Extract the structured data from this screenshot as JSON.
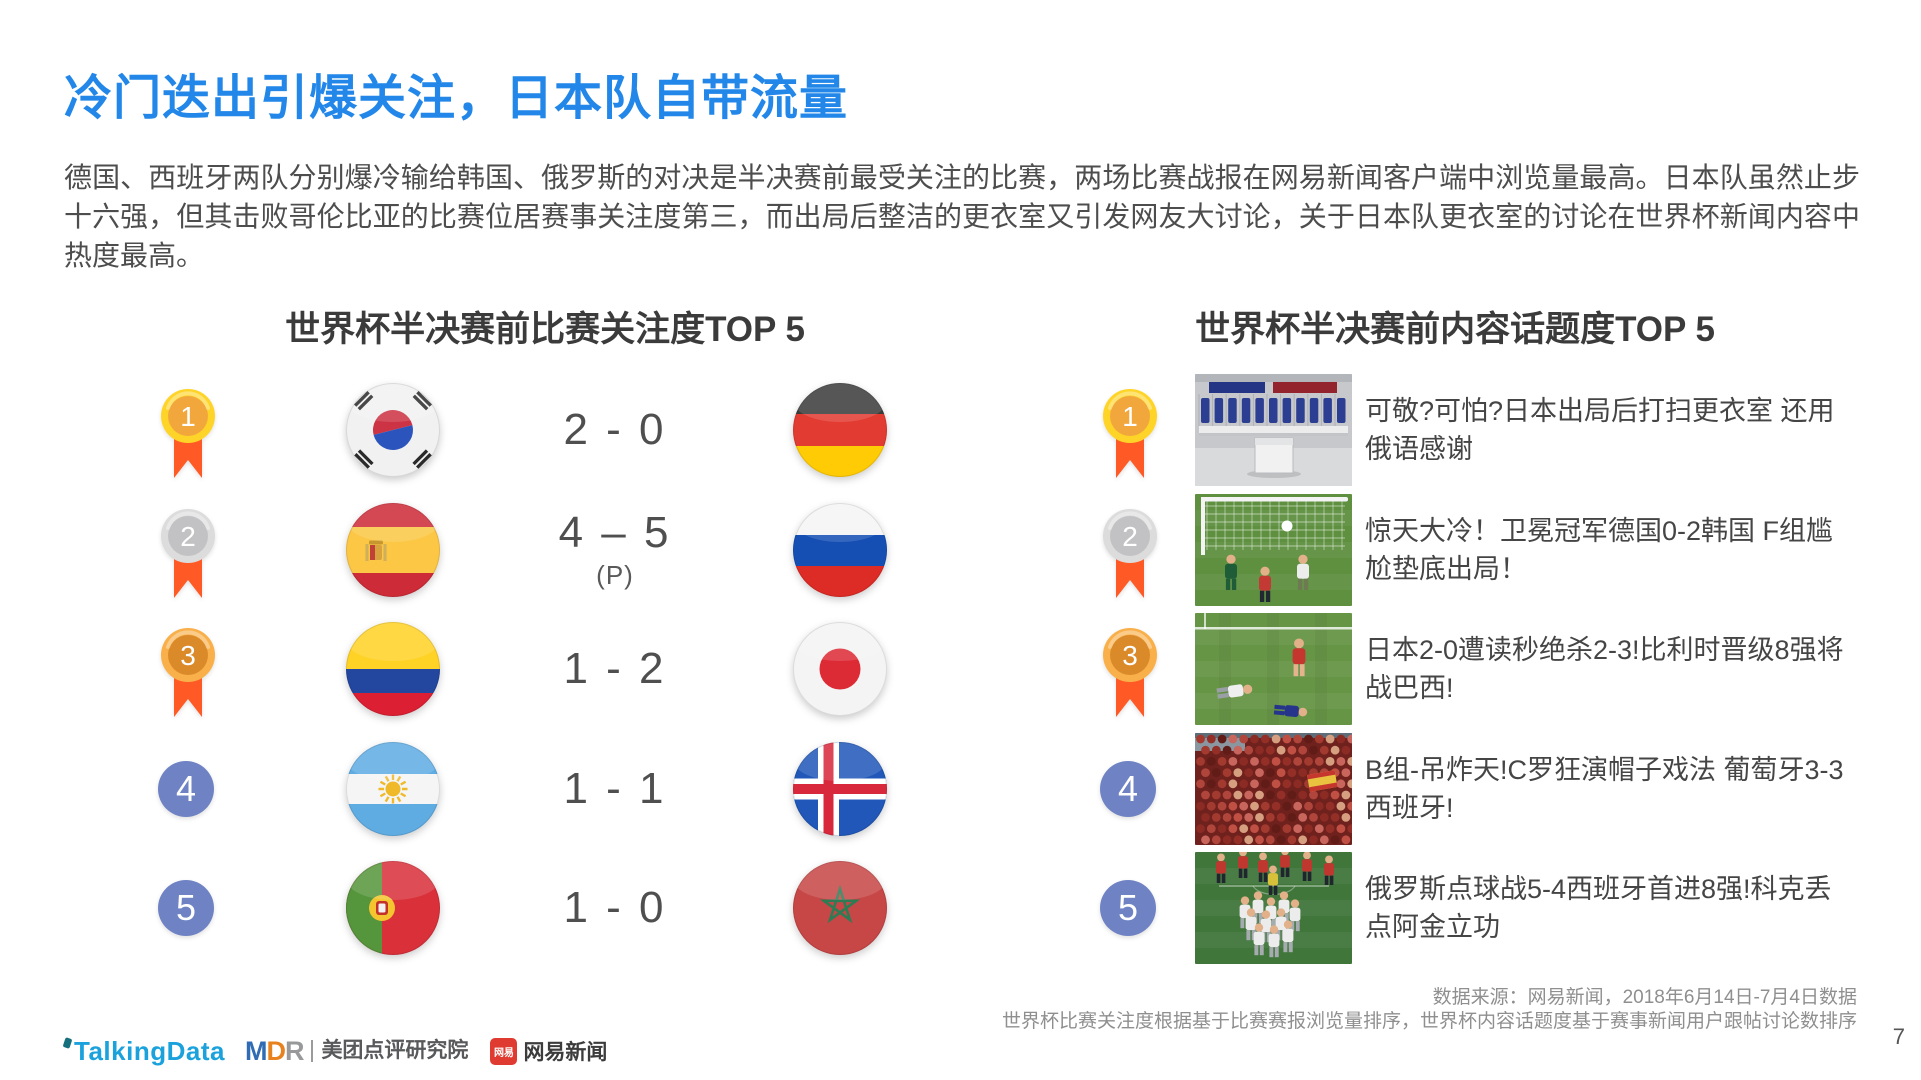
{
  "slide": {
    "title": "冷门迭出引爆关注，日本队自带流量",
    "intro": "德国、西班牙两队分别爆冷输给韩国、俄罗斯的对决是半决赛前最受关注的比赛，两场比赛战报在网易新闻客户端中浏览量最高。日本队虽然止步十六强，但其击败哥伦比亚的比赛位居赛事关注度第三，而出局后整洁的更衣室又引发网友大讨论，关于日本队更衣室的讨论在世界杯新闻内容中热度最高。",
    "page_number": "7"
  },
  "match_ranking": {
    "header": "世界杯半决赛前比赛关注度TOP 5",
    "rows": [
      {
        "rank": "1",
        "medal": "gold",
        "home_team": "south-korea",
        "score": "2 - 0",
        "score_note": "",
        "away_team": "germany"
      },
      {
        "rank": "2",
        "medal": "silver",
        "home_team": "spain",
        "score": "4 – 5",
        "score_note": "(P)",
        "away_team": "russia"
      },
      {
        "rank": "3",
        "medal": "bronze",
        "home_team": "colombia",
        "score": "1 - 2",
        "score_note": "",
        "away_team": "japan"
      },
      {
        "rank": "4",
        "medal": "plain",
        "home_team": "argentina",
        "score": "1 - 1",
        "score_note": "",
        "away_team": "iceland"
      },
      {
        "rank": "5",
        "medal": "plain",
        "home_team": "portugal",
        "score": "1 - 0",
        "score_note": "",
        "away_team": "morocco"
      }
    ]
  },
  "topic_ranking": {
    "header": "世界杯半决赛前内容话题度TOP 5",
    "rows": [
      {
        "rank": "1",
        "medal": "gold",
        "scene": "locker_room",
        "title": "可敬?可怕?日本出局后打扫更衣室 还用俄语感谢"
      },
      {
        "rank": "2",
        "medal": "silver",
        "scene": "goal_net",
        "title": "惊天大冷！卫冕冠军德国0-2韩国 F组尴尬垫底出局！"
      },
      {
        "rank": "3",
        "medal": "bronze",
        "scene": "players_down",
        "title": "日本2-0遭读秒绝杀2-3!比利时晋级8强将战巴西!"
      },
      {
        "rank": "4",
        "medal": "plain",
        "scene": "red_fans",
        "title": "B组-吊炸天!C罗狂演帽子戏法 葡萄牙3-3西班牙!"
      },
      {
        "rank": "5",
        "medal": "plain",
        "scene": "penalty_celebration",
        "title": "俄罗斯点球战5-4西班牙首进8强!科克丢点阿金立功"
      }
    ]
  },
  "footer": {
    "source_line1": "数据来源：网易新闻，2018年6月14日-7月4日数据",
    "source_line2": "世界杯比赛关注度根据基于比赛赛报浏览量排序，世界杯内容话题度基于赛事新闻用户跟帖讨论数排序",
    "logos": {
      "talkingdata": "TalkingData",
      "mdr": "MDR",
      "meituan": "美团点评研究院",
      "netease_icon": "网易",
      "netease": "网易新闻"
    }
  },
  "colors": {
    "title_blue": "#2287E8",
    "body_text": "#4D4D4D",
    "header_text": "#3B3B3B",
    "score_text": "#4F4F4F",
    "medal_gold_ring": "#FFD428",
    "medal_gold_disc": "#F2A73D",
    "medal_silver_ring": "#DCDCDC",
    "medal_silver_disc": "#C2C2C4",
    "medal_bronze_ring": "#F9B04A",
    "medal_bronze_disc": "#DB8A2A",
    "ribbon_orange": "#FF5A26",
    "rank_circle_blue": "#6F83C4",
    "talkingdata_blue": "#1BA2DC",
    "netease_red": "#DF3B31"
  }
}
